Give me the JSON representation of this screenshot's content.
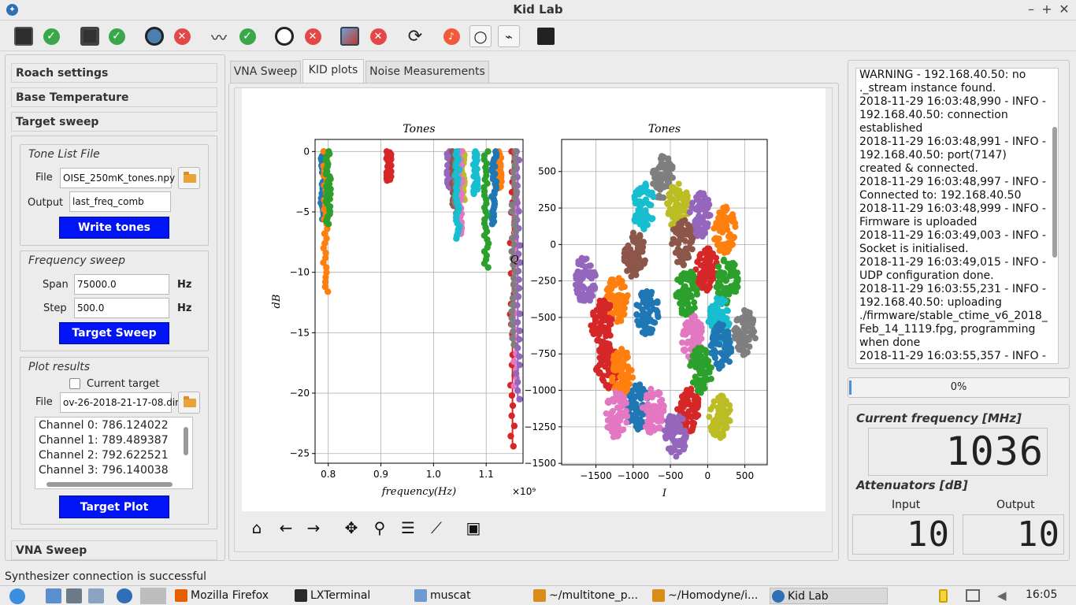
{
  "window": {
    "title": "Kid Lab"
  },
  "toolbar": {
    "items": [
      {
        "name": "roach-icon"
      },
      {
        "name": "roach-status-ok-icon"
      },
      {
        "name": "synth-icon"
      },
      {
        "name": "synth-status-ok-icon"
      },
      {
        "name": "cryostat-icon"
      },
      {
        "name": "cryostat-status-error-icon"
      },
      {
        "name": "signal-icon"
      },
      {
        "name": "signal-status-ok-icon"
      },
      {
        "name": "timer-icon"
      },
      {
        "name": "timer-status-error-icon"
      },
      {
        "name": "chart-icon"
      },
      {
        "name": "chart-status-error-icon"
      },
      {
        "name": "reload-icon"
      },
      {
        "name": "bell-icon"
      },
      {
        "name": "circle-icon"
      },
      {
        "name": "broom-icon"
      },
      {
        "name": "save-disk-icon"
      }
    ]
  },
  "sidebar": {
    "sections": [
      "Roach settings",
      "Base Temperature",
      "Target sweep"
    ],
    "tone_list": {
      "title": "Tone List File",
      "file_label": "File",
      "file_value": "OISE_250mK_tones.npy",
      "output_label": "Output",
      "output_value": "last_freq_comb",
      "button": "Write tones"
    },
    "freq_sweep": {
      "title": "Frequency sweep",
      "span_label": "Span",
      "span_value": "75000.0",
      "span_unit": "Hz",
      "step_label": "Step",
      "step_value": "500.0",
      "step_unit": "Hz",
      "button": "Target Sweep"
    },
    "plot_results": {
      "title": "Plot results",
      "current_target_label": "Current target",
      "file_label": "File",
      "file_value": "ov-26-2018-21-17-08.dir",
      "channels": [
        "Channel 0: 786.124022",
        "Channel 1: 789.489387",
        "Channel 2: 792.622521",
        "Channel 3: 796.140038"
      ],
      "button": "Target Plot"
    },
    "vna_section": "VNA Sweep"
  },
  "tabs": [
    {
      "label": "VNA Sweep",
      "active": false
    },
    {
      "label": "KID plots",
      "active": true
    },
    {
      "label": "Noise Measurements",
      "active": false
    }
  ],
  "chart_data": [
    {
      "type": "scatter",
      "title": "Tones",
      "xlabel": "frequency(Hz)",
      "ylabel": "dB",
      "x_scale_label": "×10⁹",
      "xticks": [
        "0.8",
        "0.9",
        "1.0",
        "1.1"
      ],
      "yticks": [
        "0",
        "−5",
        "−10",
        "−15",
        "−20",
        "−25"
      ],
      "xlim": [
        0.775,
        1.17
      ],
      "ylim": [
        -25.8,
        1
      ],
      "grid": true,
      "series": [
        {
          "color": "#1f77b4",
          "x": 0.79,
          "ymin": -5.6
        },
        {
          "color": "#ff7f0e",
          "x": 0.795,
          "ymin": -11.6
        },
        {
          "color": "#2ca02c",
          "x": 0.8,
          "ymin": -6.0
        },
        {
          "color": "#d62728",
          "x": 0.915,
          "ymin": -2.4
        },
        {
          "color": "#9467bd",
          "x": 1.03,
          "ymin": -3.0
        },
        {
          "color": "#8c564b",
          "x": 1.04,
          "ymin": -4.5
        },
        {
          "color": "#bcbd22",
          "x": 1.055,
          "ymin": -4.0
        },
        {
          "color": "#7f7f7f",
          "x": 1.045,
          "ymin": -5.5
        },
        {
          "color": "#17becf",
          "x": 1.08,
          "ymin": -3.5
        },
        {
          "color": "#e377c2",
          "x": 1.05,
          "ymin": -6.8
        },
        {
          "color": "#17becf",
          "x": 1.045,
          "ymin": -7.2
        },
        {
          "color": "#2ca02c",
          "x": 1.1,
          "ymin": -9.6
        },
        {
          "color": "#ff7f0e",
          "x": 1.125,
          "ymin": -3.0
        },
        {
          "color": "#1f77b4",
          "x": 1.115,
          "ymin": -6.0
        },
        {
          "color": "#d62728",
          "x": 1.15,
          "ymin": -24.4
        },
        {
          "color": "#e377c2",
          "x": 1.155,
          "ymin": -19.4
        },
        {
          "color": "#9467bd",
          "x": 1.16,
          "ymin": -20.5
        },
        {
          "color": "#7f7f7f",
          "x": 1.153,
          "ymin": -16.0
        }
      ]
    },
    {
      "type": "scatter",
      "title": "Tones",
      "xlabel": "I",
      "ylabel": "Q",
      "xticks": [
        "−1500",
        "−1000",
        "−500",
        "0",
        "500"
      ],
      "yticks": [
        "500",
        "250",
        "0",
        "−250",
        "−500",
        "−750",
        "−1000",
        "−1250",
        "−1500"
      ],
      "xlim": [
        -1960,
        800
      ],
      "ylim": [
        -1510,
        720
      ],
      "grid": true,
      "clusters": [
        {
          "color": "#7f7f7f",
          "x": -600,
          "y": 450
        },
        {
          "color": "#17becf",
          "x": -860,
          "y": 260
        },
        {
          "color": "#bcbd22",
          "x": -400,
          "y": 260
        },
        {
          "color": "#9467bd",
          "x": -100,
          "y": 200
        },
        {
          "color": "#ff7f0e",
          "x": 230,
          "y": 100
        },
        {
          "color": "#8c564b",
          "x": -980,
          "y": -70
        },
        {
          "color": "#8c564b",
          "x": -340,
          "y": 10
        },
        {
          "color": "#d62728",
          "x": -10,
          "y": -170
        },
        {
          "color": "#2ca02c",
          "x": 260,
          "y": -250
        },
        {
          "color": "#9467bd",
          "x": -1640,
          "y": -240
        },
        {
          "color": "#ff7f0e",
          "x": -1220,
          "y": -380
        },
        {
          "color": "#2ca02c",
          "x": -280,
          "y": -330
        },
        {
          "color": "#1f77b4",
          "x": -810,
          "y": -460
        },
        {
          "color": "#d62728",
          "x": -1420,
          "y": -520
        },
        {
          "color": "#17becf",
          "x": 150,
          "y": -520
        },
        {
          "color": "#e377c2",
          "x": -200,
          "y": -640
        },
        {
          "color": "#7f7f7f",
          "x": 500,
          "y": -600
        },
        {
          "color": "#1f77b4",
          "x": 180,
          "y": -700
        },
        {
          "color": "#2ca02c",
          "x": -90,
          "y": -860
        },
        {
          "color": "#d62728",
          "x": -1350,
          "y": -830
        },
        {
          "color": "#ff7f0e",
          "x": -1150,
          "y": -870
        },
        {
          "color": "#1f77b4",
          "x": -950,
          "y": -1110
        },
        {
          "color": "#e377c2",
          "x": -1220,
          "y": -1170
        },
        {
          "color": "#e377c2",
          "x": -730,
          "y": -1140
        },
        {
          "color": "#d62728",
          "x": -260,
          "y": -1130
        },
        {
          "color": "#bcbd22",
          "x": 170,
          "y": -1180
        },
        {
          "color": "#9467bd",
          "x": -430,
          "y": -1310
        }
      ]
    }
  ],
  "log": {
    "lines": [
      "WARNING - 192.168.40.50: no ._stream instance found.",
      "2018-11-29 16:03:48,990 - INFO - 192.168.40.50: connection established",
      "2018-11-29 16:03:48,991 - INFO - 192.168.40.50: port(7147) created & connected.",
      "2018-11-29 16:03:48,997 - INFO - Connected to: 192.168.40.50",
      "2018-11-29 16:03:48,999 - INFO - Firmware is uploaded",
      "2018-11-29 16:03:49,003 - INFO - Socket is initialised.",
      "2018-11-29 16:03:49,015 - INFO - UDP configuration done.",
      "2018-11-29 16:03:55,231 - INFO - 192.168.40.50: uploading ./firmware/stable_ctime_v6_2018_Feb_14_1119.fpg, programming when done",
      "2018-11-29 16:03:55,357 - INFO -"
    ]
  },
  "progress": {
    "value": 0,
    "label": "0%"
  },
  "readouts": {
    "freq_title": "Current frequency [MHz]",
    "freq_value": "1036",
    "atten_title": "Attenuators [dB]",
    "input_label": "Input",
    "input_value": "10",
    "output_label": "Output",
    "output_value": "10"
  },
  "status_bar": "Synthesizer connection is successful",
  "taskbar": {
    "tasks": [
      "Mozilla Firefox",
      "LXTerminal",
      "muscat",
      "~/multitone_p...",
      "~/Homodyne/i...",
      "Kid Lab"
    ],
    "clock": "16:05"
  }
}
